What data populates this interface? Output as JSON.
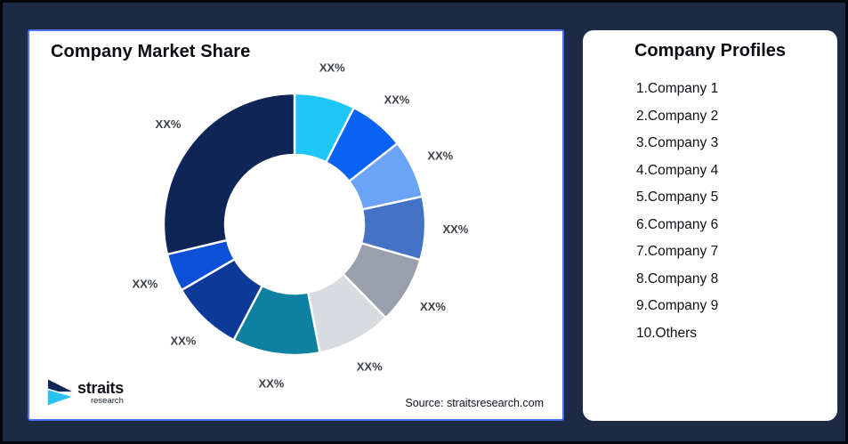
{
  "frame": {
    "background_color": "#1d2a44"
  },
  "chart_card": {
    "title": "Company Market Share",
    "source": "Source: straitsresearch.com",
    "border_color": "#4d6ef2",
    "logo": {
      "name": "straits",
      "sub": "research",
      "mark_navy": "#0f2557",
      "mark_cyan": "#29c1f0"
    }
  },
  "profiles_card": {
    "title": "Company Profiles",
    "items": [
      "1.Company 1",
      "2.Company 2",
      "3.Company 3",
      "4.Company 4",
      "5.Company 5",
      "6.Company 6",
      "7.Company 7",
      "8.Company 8",
      "9.Company 9",
      "10.Others"
    ]
  },
  "chart_data": {
    "type": "pie",
    "subtype": "donut",
    "title": "Company Market Share",
    "source": "Source: straitsresearch.com",
    "categories": [
      "Company 1",
      "Company 2",
      "Company 3",
      "Company 4",
      "Company 5",
      "Company 6",
      "Company 7",
      "Company 8",
      "Company 9",
      "Others"
    ],
    "values": [
      7.5,
      6.9,
      7.2,
      7.8,
      8.3,
      9.2,
      10.8,
      8.9,
      4.7,
      28.7
    ],
    "labels": [
      "XX%",
      "XX%",
      "XX%",
      "XX%",
      "XX%",
      "XX%",
      "XX%",
      "XX%",
      "XX%",
      "XX%"
    ],
    "colors": [
      "#1ec7f7",
      "#0863f4",
      "#6ba3f7",
      "#4472c4",
      "#99a0ac",
      "#d8dbe0",
      "#0e81a2",
      "#0d3a99",
      "#0c50d8",
      "#0f2557"
    ],
    "start_angle_deg": 0,
    "direction": "clockwise",
    "inner_radius_ratio": 0.53,
    "label_color": "#3d4249",
    "legend_position": "none"
  }
}
